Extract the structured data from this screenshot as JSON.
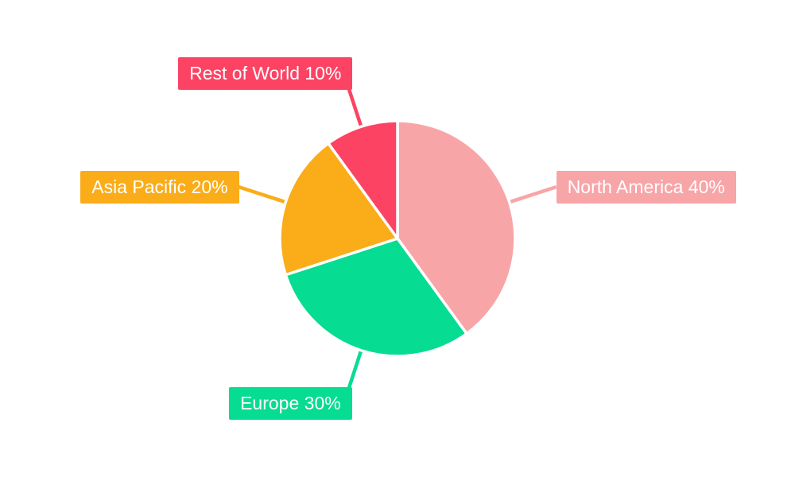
{
  "canvas": {
    "background": "#FFFFFF"
  },
  "chart_data": {
    "type": "pie",
    "direction": "clockwise",
    "start_angle_deg": 0,
    "legend_position": "none",
    "label_style": "callout-boxes-with-leader-lines",
    "value_unit": "%",
    "label_text_color": "#FFFFFF",
    "slice_border_color": "#FFFFFF",
    "slices": [
      {
        "id": "north-america",
        "name": "North America",
        "value": 40,
        "label": "North America 40%",
        "color": "#F8A5A8"
      },
      {
        "id": "europe",
        "name": "Europe",
        "value": 30,
        "label": "Europe 30%",
        "color": "#06DC92"
      },
      {
        "id": "asia-pacific",
        "name": "Asia Pacific",
        "value": 20,
        "label": "Asia Pacific 20%",
        "color": "#FAAC19"
      },
      {
        "id": "rest-of-world",
        "name": "Rest of World",
        "value": 10,
        "label": "Rest of World 10%",
        "color": "#FC4363"
      }
    ]
  }
}
